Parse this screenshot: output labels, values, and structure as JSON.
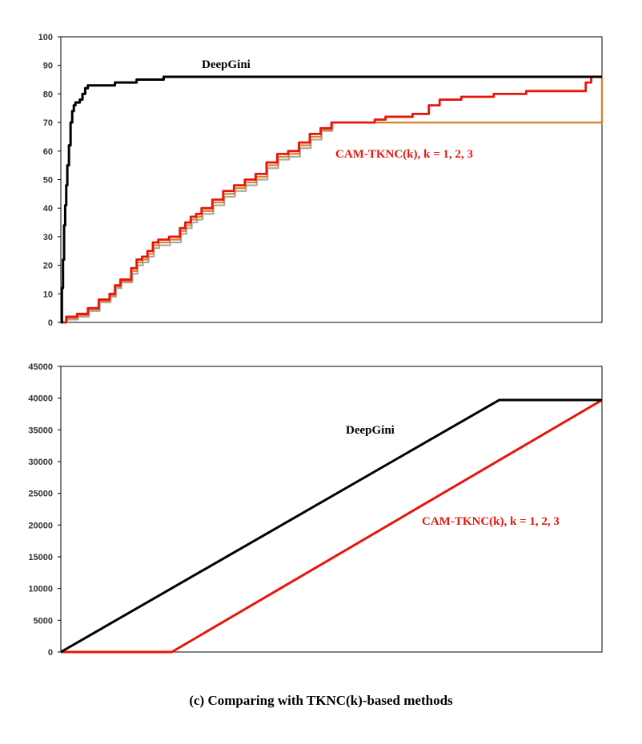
{
  "figure_caption": "(c)  Comparing with TKNC(k)-based methods",
  "colors": {
    "deepgini": "#000000",
    "cam_main": "#e8150b",
    "cam_gray": "#a9a9a9",
    "cam_orange": "#d9822b"
  },
  "chart_data": [
    {
      "type": "line",
      "title": "",
      "xlabel": "",
      "ylabel": "",
      "ylim": [
        0,
        100
      ],
      "yticks": [
        "0",
        "10",
        "20",
        "30",
        "40",
        "50",
        "60",
        "70",
        "80",
        "90",
        "100"
      ],
      "xlim": [
        0,
        1
      ],
      "grid": false,
      "legend": "none",
      "annotations": [
        {
          "text": "DeepGini",
          "color": "#000000"
        },
        {
          "text": "CAM-TKNC(k), k = 1, 2, 3",
          "color": "#e8150b"
        }
      ],
      "series": [
        {
          "series_key": "DeepGini",
          "color": "#000000",
          "x": [
            0,
            0.002,
            0.004,
            0.006,
            0.008,
            0.01,
            0.012,
            0.015,
            0.018,
            0.021,
            0.024,
            0.027,
            0.03,
            0.035,
            0.04,
            0.045,
            0.05,
            0.06,
            0.07,
            0.1,
            0.14,
            0.19,
            1.0
          ],
          "y": [
            0,
            12,
            22,
            34,
            41,
            48,
            55,
            62,
            70,
            74,
            76,
            77,
            77,
            78,
            80,
            82,
            83,
            83,
            83,
            84,
            85,
            86,
            86
          ]
        },
        {
          "series_key": "CAM-TKNC(1)",
          "color": "#e8150b",
          "x": [
            0,
            0.01,
            0.03,
            0.05,
            0.07,
            0.09,
            0.1,
            0.11,
            0.13,
            0.14,
            0.15,
            0.16,
            0.17,
            0.18,
            0.2,
            0.22,
            0.23,
            0.24,
            0.25,
            0.26,
            0.28,
            0.3,
            0.32,
            0.34,
            0.36,
            0.38,
            0.4,
            0.42,
            0.44,
            0.46,
            0.48,
            0.5,
            0.53,
            0.56,
            0.58,
            0.6,
            0.65,
            0.68,
            0.7,
            0.74,
            0.8,
            0.86,
            0.95,
            0.97,
            0.98,
            1.0
          ],
          "y": [
            0,
            2,
            3,
            5,
            8,
            10,
            13,
            15,
            19,
            22,
            23,
            25,
            28,
            29,
            30,
            33,
            35,
            37,
            38,
            40,
            43,
            46,
            48,
            50,
            52,
            56,
            59,
            60,
            63,
            66,
            68,
            70,
            70,
            70,
            71,
            72,
            73,
            76,
            78,
            79,
            80,
            81,
            81,
            84,
            86,
            86
          ]
        },
        {
          "series_key": "CAM-TKNC(2)",
          "color": "#a9a9a9",
          "x": [
            0,
            0.012,
            0.032,
            0.052,
            0.072,
            0.092,
            0.102,
            0.112,
            0.132,
            0.142,
            0.152,
            0.162,
            0.172,
            0.182,
            0.202,
            0.222,
            0.232,
            0.242,
            0.252,
            0.262,
            0.282,
            0.302,
            0.322,
            0.342,
            0.362,
            0.382,
            0.402,
            0.422,
            0.442,
            0.462,
            0.482,
            0.502,
            1.0
          ],
          "y": [
            0,
            1,
            2,
            4,
            7,
            9,
            12,
            14,
            17,
            20,
            21,
            23,
            26,
            27,
            28,
            31,
            33,
            35,
            36,
            38,
            41,
            44,
            46,
            48,
            50,
            54,
            57,
            58,
            61,
            64,
            67,
            70,
            86
          ]
        },
        {
          "series_key": "CAM-TKNC(3)",
          "color": "#d9822b",
          "x": [
            0,
            0.011,
            0.031,
            0.051,
            0.071,
            0.091,
            0.101,
            0.111,
            0.131,
            0.141,
            0.151,
            0.161,
            0.171,
            0.181,
            0.201,
            0.221,
            0.231,
            0.241,
            0.251,
            0.261,
            0.281,
            0.301,
            0.321,
            0.341,
            0.361,
            0.381,
            0.401,
            0.421,
            0.441,
            0.461,
            0.481,
            0.501,
            1.0
          ],
          "y": [
            0,
            1.5,
            2.5,
            4.5,
            7.5,
            9.5,
            12.5,
            14.5,
            18,
            21,
            22,
            24,
            27,
            28,
            29,
            32,
            34,
            36,
            37,
            39,
            42,
            45,
            47,
            49,
            51,
            55,
            58,
            59,
            62,
            65,
            67.5,
            70,
            86
          ]
        }
      ]
    },
    {
      "type": "line",
      "title": "",
      "xlabel": "",
      "ylabel": "",
      "ylim": [
        0,
        45000
      ],
      "yticks": [
        "0",
        "5000",
        "10000",
        "15000",
        "20000",
        "25000",
        "30000",
        "35000",
        "40000",
        "45000"
      ],
      "xlim": [
        0,
        1
      ],
      "grid": false,
      "legend": "none",
      "annotations": [
        {
          "text": "DeepGini",
          "color": "#000000"
        },
        {
          "text": "CAM-TKNC(k), k = 1, 2, 3",
          "color": "#e8150b"
        }
      ],
      "series": [
        {
          "series_key": "DeepGini",
          "color": "#000000",
          "x": [
            0,
            0.81,
            1.0
          ],
          "y": [
            0,
            39700,
            39700
          ]
        },
        {
          "series_key": "CAM-TKNC(k)",
          "color": "#e8150b",
          "x": [
            0,
            0.205,
            1.0
          ],
          "y": [
            0,
            0,
            39700
          ]
        }
      ]
    }
  ]
}
